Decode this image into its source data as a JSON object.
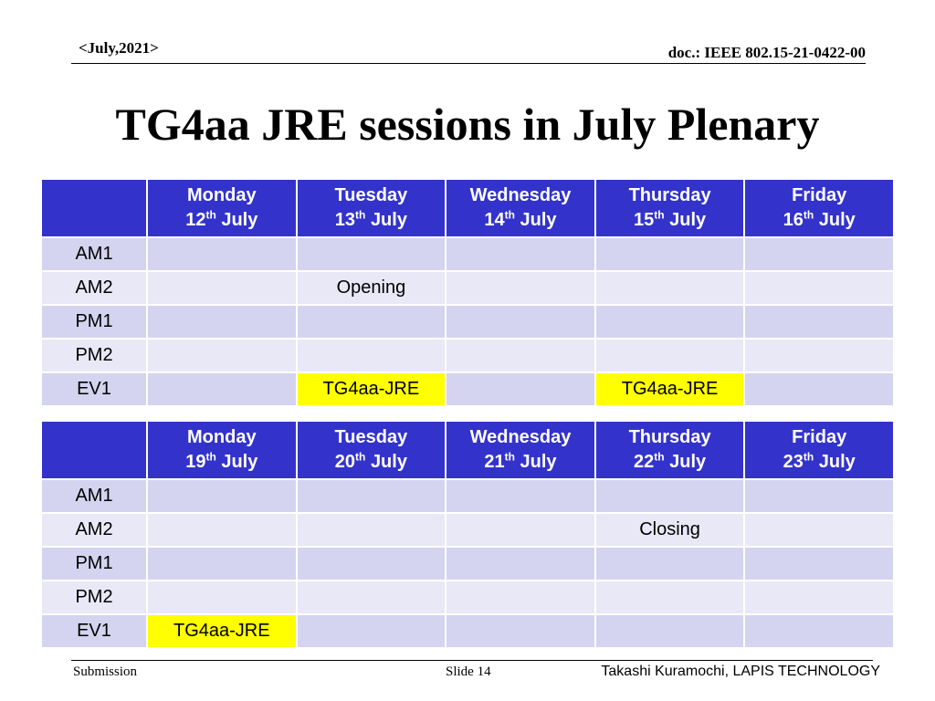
{
  "header": {
    "date": "<July,2021>",
    "doc": "doc.: IEEE 802.15-21-0422-00"
  },
  "title": "TG4aa JRE sessions in July Plenary",
  "week1": {
    "days": [
      {
        "name": "Monday",
        "num": "12",
        "sup": "th",
        "month": "July"
      },
      {
        "name": "Tuesday",
        "num": "13",
        "sup": "th",
        "month": "July"
      },
      {
        "name": "Wednesday",
        "num": "14",
        "sup": "th",
        "month": "July"
      },
      {
        "name": "Thursday",
        "num": "15",
        "sup": "th",
        "month": "July"
      },
      {
        "name": "Friday",
        "num": "16",
        "sup": "th",
        "month": "July"
      }
    ],
    "rows": [
      {
        "label": "AM1",
        "cells": [
          "",
          "",
          "",
          "",
          ""
        ],
        "highlight": [
          false,
          false,
          false,
          false,
          false
        ]
      },
      {
        "label": "AM2",
        "cells": [
          "",
          "Opening",
          "",
          "",
          ""
        ],
        "highlight": [
          false,
          false,
          false,
          false,
          false
        ]
      },
      {
        "label": "PM1",
        "cells": [
          "",
          "",
          "",
          "",
          ""
        ],
        "highlight": [
          false,
          false,
          false,
          false,
          false
        ]
      },
      {
        "label": "PM2",
        "cells": [
          "",
          "",
          "",
          "",
          ""
        ],
        "highlight": [
          false,
          false,
          false,
          false,
          false
        ]
      },
      {
        "label": "EV1",
        "cells": [
          "",
          "TG4aa-JRE",
          "",
          "TG4aa-JRE",
          ""
        ],
        "highlight": [
          false,
          true,
          false,
          true,
          false
        ]
      }
    ]
  },
  "week2": {
    "days": [
      {
        "name": "Monday",
        "num": "19",
        "sup": "th",
        "month": "July"
      },
      {
        "name": "Tuesday",
        "num": "20",
        "sup": "th",
        "month": "July"
      },
      {
        "name": "Wednesday",
        "num": "21",
        "sup": "th",
        "month": "July"
      },
      {
        "name": "Thursday",
        "num": "22",
        "sup": "th",
        "month": "July"
      },
      {
        "name": "Friday",
        "num": "23",
        "sup": "th",
        "month": "July"
      }
    ],
    "rows": [
      {
        "label": "AM1",
        "cells": [
          "",
          "",
          "",
          "",
          ""
        ],
        "highlight": [
          false,
          false,
          false,
          false,
          false
        ]
      },
      {
        "label": "AM2",
        "cells": [
          "",
          "",
          "",
          "Closing",
          ""
        ],
        "highlight": [
          false,
          false,
          false,
          false,
          false
        ]
      },
      {
        "label": "PM1",
        "cells": [
          "",
          "",
          "",
          "",
          ""
        ],
        "highlight": [
          false,
          false,
          false,
          false,
          false
        ]
      },
      {
        "label": "PM2",
        "cells": [
          "",
          "",
          "",
          "",
          ""
        ],
        "highlight": [
          false,
          false,
          false,
          false,
          false
        ]
      },
      {
        "label": "EV1",
        "cells": [
          "TG4aa-JRE",
          "",
          "",
          "",
          ""
        ],
        "highlight": [
          true,
          false,
          false,
          false,
          false
        ]
      }
    ]
  },
  "highlight_color": "#ffff00",
  "header_color": "#3333cc",
  "footer": {
    "left": "Submission",
    "middle": "Slide 14",
    "right": "Takashi Kuramochi, LAPIS TECHNOLOGY"
  }
}
